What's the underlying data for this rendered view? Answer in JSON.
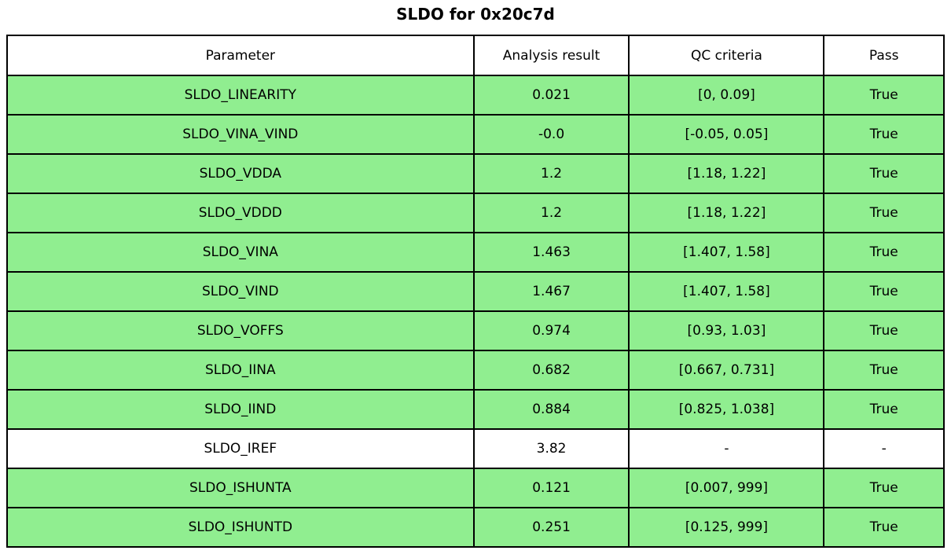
{
  "title": "SLDO for 0x20c7d",
  "colors": {
    "pass_row": "#90EE90",
    "neutral_row": "#FFFFFF",
    "border": "#000000",
    "text": "#000000"
  },
  "chart_data": {
    "type": "table",
    "title": "SLDO for 0x20c7d",
    "columns": [
      "Parameter",
      "Analysis result",
      "QC criteria",
      "Pass"
    ],
    "rows": [
      {
        "parameter": "SLDO_LINEARITY",
        "result": "0.021",
        "criteria": "[0, 0.09]",
        "pass": "True",
        "highlight": true
      },
      {
        "parameter": "SLDO_VINA_VIND",
        "result": "-0.0",
        "criteria": "[-0.05, 0.05]",
        "pass": "True",
        "highlight": true
      },
      {
        "parameter": "SLDO_VDDA",
        "result": "1.2",
        "criteria": "[1.18, 1.22]",
        "pass": "True",
        "highlight": true
      },
      {
        "parameter": "SLDO_VDDD",
        "result": "1.2",
        "criteria": "[1.18, 1.22]",
        "pass": "True",
        "highlight": true
      },
      {
        "parameter": "SLDO_VINA",
        "result": "1.463",
        "criteria": "[1.407, 1.58]",
        "pass": "True",
        "highlight": true
      },
      {
        "parameter": "SLDO_VIND",
        "result": "1.467",
        "criteria": "[1.407, 1.58]",
        "pass": "True",
        "highlight": true
      },
      {
        "parameter": "SLDO_VOFFS",
        "result": "0.974",
        "criteria": "[0.93, 1.03]",
        "pass": "True",
        "highlight": true
      },
      {
        "parameter": "SLDO_IINA",
        "result": "0.682",
        "criteria": "[0.667, 0.731]",
        "pass": "True",
        "highlight": true
      },
      {
        "parameter": "SLDO_IIND",
        "result": "0.884",
        "criteria": "[0.825, 1.038]",
        "pass": "True",
        "highlight": true
      },
      {
        "parameter": "SLDO_IREF",
        "result": "3.82",
        "criteria": "-",
        "pass": "-",
        "highlight": false
      },
      {
        "parameter": "SLDO_ISHUNTA",
        "result": "0.121",
        "criteria": "[0.007, 999]",
        "pass": "True",
        "highlight": true
      },
      {
        "parameter": "SLDO_ISHUNTD",
        "result": "0.251",
        "criteria": "[0.125, 999]",
        "pass": "True",
        "highlight": true
      }
    ]
  }
}
